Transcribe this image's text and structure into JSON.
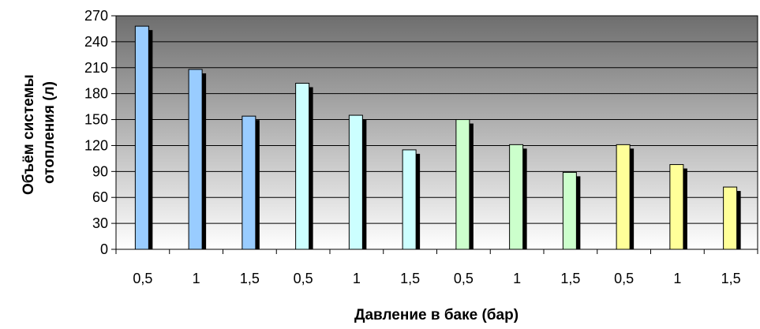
{
  "chart_data": {
    "type": "bar",
    "title": "",
    "xlabel": "Давление в баке (бар)",
    "ylabel_lines": [
      "Объём системы",
      "отопления (л)"
    ],
    "categories": [
      "0,5",
      "1",
      "1,5",
      "0,5",
      "1",
      "1,5",
      "0,5",
      "1",
      "1,5",
      "0,5",
      "1",
      "1,5"
    ],
    "values": [
      258,
      208,
      154,
      192,
      155,
      115,
      150,
      121,
      89,
      121,
      98,
      72
    ],
    "bar_colors": [
      "#99ccff",
      "#99ccff",
      "#99ccff",
      "#ccffff",
      "#ccffff",
      "#ccffff",
      "#ccffcc",
      "#ccffcc",
      "#ccffcc",
      "#ffff99",
      "#ffff99",
      "#ffff99"
    ],
    "ylim": [
      0,
      270
    ],
    "yticks": [
      "0",
      "30",
      "60",
      "90",
      "120",
      "150",
      "180",
      "210",
      "240",
      "270"
    ],
    "grid": true,
    "legend": "none",
    "background": "gradient dark gray (top) to white (bottom)"
  }
}
